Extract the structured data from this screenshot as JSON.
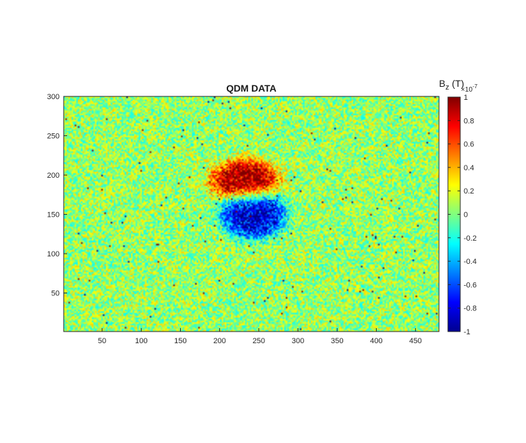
{
  "chart_data": {
    "type": "heatmap",
    "title": "QDM DATA",
    "xlabel": "",
    "ylabel": "",
    "xlim": [
      1,
      480
    ],
    "ylim": [
      1,
      300
    ],
    "x_ticks": [
      50,
      100,
      150,
      200,
      250,
      300,
      350,
      400,
      450
    ],
    "y_ticks": [
      50,
      100,
      150,
      200,
      250,
      300
    ],
    "colormap": "jet",
    "colorbar": {
      "label_main": "B",
      "label_sub": "z",
      "label_unit": " (T)",
      "exponent_base": "×10",
      "exponent_power": "-7",
      "range": [
        -1,
        1
      ],
      "ticks": [
        1,
        0.8,
        0.6,
        0.4,
        0.2,
        0,
        -0.2,
        -0.4,
        -0.6,
        -0.8,
        -1
      ],
      "tick_labels": [
        "1",
        "0.8",
        "0.6",
        "0.4",
        "0.2",
        "0",
        "-0.2",
        "-0.4",
        "-0.6",
        "-0.8",
        "-1"
      ]
    },
    "features": [
      {
        "name": "positive lobe",
        "x_center": 232,
        "y_center": 193,
        "x_radius": 42,
        "y_radius": 26,
        "value": 0.9
      },
      {
        "name": "negative lobe",
        "x_center": 243,
        "y_center": 150,
        "x_radius": 40,
        "y_radius": 30,
        "value": -0.9
      }
    ],
    "background_mean": 0.05,
    "background_noise": 0.3,
    "grid": false
  }
}
